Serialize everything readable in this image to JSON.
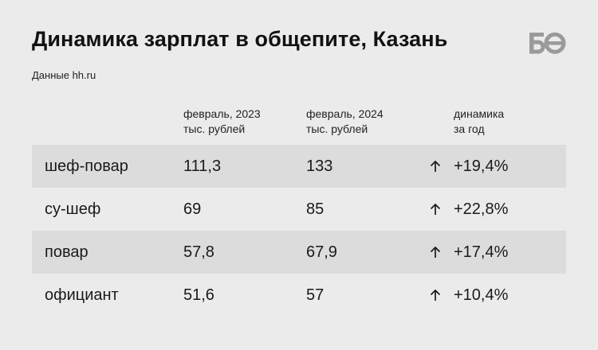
{
  "title": "Динамика зарплат в общепите, Казань",
  "source": "Данные hh.ru",
  "logo_text": "БО",
  "headers": {
    "col2023": [
      "февраль, 2023",
      "тыс. рублей"
    ],
    "col2024": [
      "февраль, 2024",
      "тыс. рублей"
    ],
    "change": [
      "динамика",
      "за год"
    ]
  },
  "rows": [
    {
      "name": "шеф-повар",
      "v2023": "111,3",
      "v2024": "133",
      "change": "+19,4%"
    },
    {
      "name": "су-шеф",
      "v2023": "69",
      "v2024": "85",
      "change": "+22,8%"
    },
    {
      "name": "повар",
      "v2023": "57,8",
      "v2024": "67,9",
      "change": "+17,4%"
    },
    {
      "name": "официант",
      "v2023": "51,6",
      "v2024": "57",
      "change": "+10,4%"
    }
  ],
  "colors": {
    "background": "#ebebeb",
    "row_shade": "#dcdcdc",
    "logo": "#9a9a9a"
  },
  "icons": {
    "trend": "arrow-up-icon"
  }
}
